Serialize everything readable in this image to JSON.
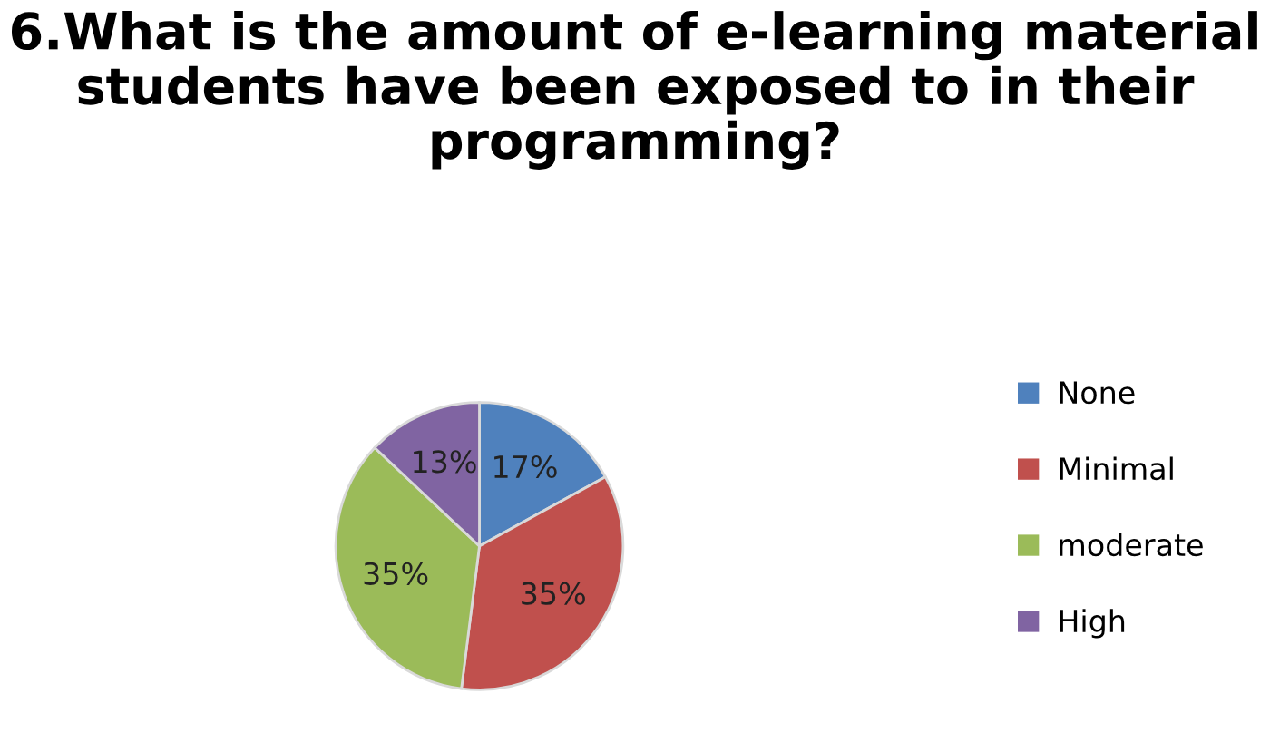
{
  "chart_data": {
    "type": "pie",
    "title": "6.What is the amount of e-learning material students have been exposed to in their programming?",
    "categories": [
      "None",
      "Minimal",
      "moderate",
      "High"
    ],
    "values": [
      17,
      35,
      35,
      13
    ],
    "colors": [
      "#4f81bd",
      "#c0504d",
      "#9bbb59",
      "#8064a2"
    ],
    "value_labels": [
      "17%",
      "35%",
      "35%",
      "13%"
    ],
    "legend": "right"
  }
}
